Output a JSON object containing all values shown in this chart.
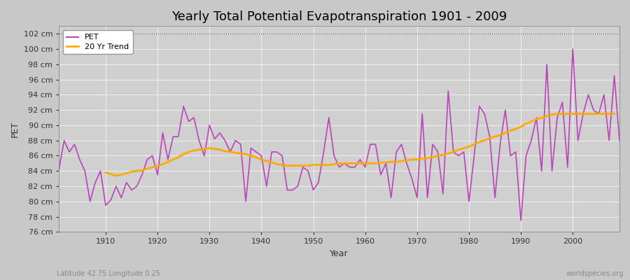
{
  "title": "Yearly Total Potential Evapotranspiration 1901 - 2009",
  "xlabel": "Year",
  "ylabel": "PET",
  "footnote_left": "Latitude 42.75 Longitude 0.25",
  "footnote_right": "worldspecies.org",
  "pet_color": "#bb44bb",
  "trend_color": "#ffaa00",
  "fig_bg_color": "#c8c8c8",
  "plot_bg_color": "#d0d0d0",
  "ylim": [
    76,
    103
  ],
  "ytick_step": 2,
  "xlim": [
    1901,
    2009
  ],
  "years": [
    1901,
    1902,
    1903,
    1904,
    1905,
    1906,
    1907,
    1908,
    1909,
    1910,
    1911,
    1912,
    1913,
    1914,
    1915,
    1916,
    1917,
    1918,
    1919,
    1920,
    1921,
    1922,
    1923,
    1924,
    1925,
    1926,
    1927,
    1928,
    1929,
    1930,
    1931,
    1932,
    1933,
    1934,
    1935,
    1936,
    1937,
    1938,
    1939,
    1940,
    1941,
    1942,
    1943,
    1944,
    1945,
    1946,
    1947,
    1948,
    1949,
    1950,
    1951,
    1952,
    1953,
    1954,
    1955,
    1956,
    1957,
    1958,
    1959,
    1960,
    1961,
    1962,
    1963,
    1964,
    1965,
    1966,
    1967,
    1968,
    1969,
    1970,
    1971,
    1972,
    1973,
    1974,
    1975,
    1976,
    1977,
    1978,
    1979,
    1980,
    1981,
    1982,
    1983,
    1984,
    1985,
    1986,
    1987,
    1988,
    1989,
    1990,
    1991,
    1992,
    1993,
    1994,
    1995,
    1996,
    1997,
    1998,
    1999,
    2000,
    2001,
    2002,
    2003,
    2004,
    2005,
    2006,
    2007,
    2008,
    2009
  ],
  "pet_values": [
    84.2,
    88.0,
    86.5,
    87.5,
    85.5,
    84.0,
    80.0,
    82.5,
    84.0,
    79.5,
    80.2,
    82.0,
    80.5,
    82.5,
    81.5,
    82.0,
    83.5,
    85.5,
    86.0,
    83.5,
    89.0,
    85.5,
    88.5,
    88.5,
    92.5,
    90.5,
    91.0,
    88.0,
    86.0,
    90.0,
    88.2,
    89.0,
    88.0,
    86.5,
    88.0,
    87.5,
    80.0,
    87.0,
    86.5,
    86.0,
    82.0,
    86.5,
    86.5,
    86.0,
    81.5,
    81.5,
    82.0,
    84.5,
    84.0,
    81.5,
    82.5,
    86.5,
    91.0,
    86.0,
    84.5,
    85.0,
    84.5,
    84.5,
    85.5,
    84.5,
    87.5,
    87.5,
    83.5,
    85.0,
    80.5,
    86.5,
    87.5,
    85.0,
    83.0,
    80.5,
    91.5,
    80.5,
    87.5,
    86.5,
    81.0,
    94.5,
    86.5,
    86.0,
    86.5,
    80.0,
    86.0,
    92.5,
    91.5,
    88.5,
    80.5,
    87.5,
    92.0,
    86.0,
    86.5,
    77.5,
    86.0,
    88.0,
    91.0,
    84.0,
    98.0,
    84.0,
    91.0,
    93.0,
    84.5,
    100.0,
    88.0,
    91.5,
    94.0,
    92.0,
    91.5,
    94.0,
    88.0,
    96.5,
    88.0
  ],
  "trend_values": [
    null,
    null,
    null,
    null,
    null,
    null,
    null,
    null,
    null,
    83.8,
    83.6,
    83.4,
    83.5,
    83.7,
    83.9,
    84.0,
    84.1,
    84.3,
    84.5,
    84.7,
    84.9,
    85.2,
    85.5,
    85.8,
    86.2,
    86.5,
    86.7,
    86.8,
    86.9,
    87.0,
    86.9,
    86.8,
    86.6,
    86.5,
    86.4,
    86.3,
    86.2,
    86.0,
    85.8,
    85.5,
    85.3,
    85.1,
    84.9,
    84.8,
    84.7,
    84.7,
    84.7,
    84.7,
    84.7,
    84.8,
    84.8,
    84.8,
    84.8,
    84.9,
    85.0,
    85.0,
    85.0,
    85.0,
    85.0,
    85.0,
    85.0,
    85.0,
    85.1,
    85.1,
    85.2,
    85.2,
    85.3,
    85.4,
    85.5,
    85.5,
    85.6,
    85.7,
    85.8,
    86.0,
    86.1,
    86.3,
    86.5,
    86.8,
    87.0,
    87.2,
    87.5,
    87.8,
    88.0,
    88.3,
    88.5,
    88.7,
    89.0,
    89.3,
    89.5,
    89.8,
    90.2,
    90.5,
    90.8,
    91.0,
    91.2,
    91.4,
    91.5,
    91.5,
    91.5,
    91.5,
    91.5,
    91.5,
    91.5,
    91.5,
    91.5,
    91.5,
    91.5,
    91.5
  ],
  "title_fontsize": 13,
  "tick_fontsize": 8,
  "label_fontsize": 9,
  "footnote_fontsize": 7
}
